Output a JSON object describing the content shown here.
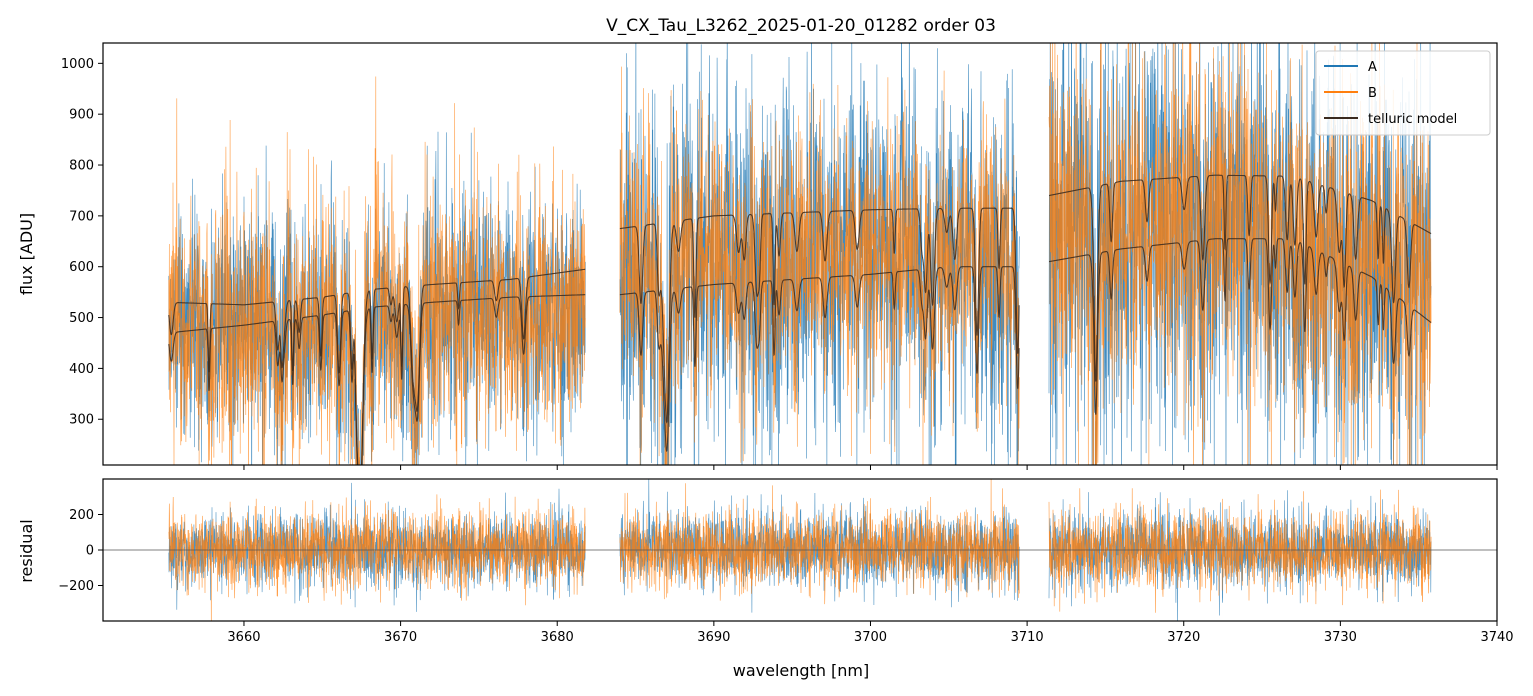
{
  "figure": {
    "title": "V_CX_Tau_L3262_2025-01-20_01282  order 03"
  },
  "colors": {
    "A": "#1f77b4",
    "B": "#ff7f0e",
    "telluric": "#3a2a1f",
    "zero_line": "#555555"
  },
  "chart_data": [
    {
      "type": "line",
      "panel": "flux",
      "ylabel": "flux [ADU]",
      "ylim": [
        210,
        1040
      ],
      "yticks": [
        300,
        400,
        500,
        600,
        700,
        800,
        900,
        1000
      ],
      "xlim": [
        3651,
        3740
      ],
      "grid": false,
      "legend": {
        "placement": "top-right",
        "entries": [
          "A",
          "B",
          "telluric model"
        ]
      },
      "segments_nm": [
        [
          3655.2,
          3681.8
        ],
        [
          3684.0,
          3709.5
        ],
        [
          3711.4,
          3735.8
        ]
      ],
      "series": [
        {
          "name": "A",
          "description": "noisy spectrum",
          "continuum_upper": [
            [
              3655.2,
              530
            ],
            [
              3668,
              555
            ],
            [
              3681.8,
              590
            ],
            [
              3684,
              680
            ],
            [
              3700,
              710
            ],
            [
              3709.5,
              715
            ],
            [
              3711.4,
              740
            ],
            [
              3722,
              780
            ],
            [
              3735.8,
              665
            ]
          ],
          "noise_sigma": [
            [
              3655.2,
              150
            ],
            [
              3681.8,
              150
            ],
            [
              3684,
              250
            ],
            [
              3709.5,
              230
            ],
            [
              3711.4,
              270
            ],
            [
              3735.8,
              270
            ]
          ]
        },
        {
          "name": "B",
          "description": "noisy spectrum",
          "continuum_upper": [
            [
              3655.2,
              530
            ],
            [
              3668,
              555
            ],
            [
              3681.8,
              590
            ],
            [
              3684,
              680
            ],
            [
              3700,
              710
            ],
            [
              3709.5,
              715
            ],
            [
              3711.4,
              740
            ],
            [
              3722,
              780
            ],
            [
              3735.8,
              665
            ]
          ],
          "noise_sigma": [
            [
              3655.2,
              160
            ],
            [
              3681.8,
              160
            ],
            [
              3684,
              180
            ],
            [
              3709.5,
              170
            ],
            [
              3711.4,
              230
            ],
            [
              3735.8,
              230
            ]
          ]
        },
        {
          "name": "telluric model",
          "upper": [
            [
              3655.2,
              530
            ],
            [
              3660,
              525
            ],
            [
              3665,
              540
            ],
            [
              3668,
              555
            ],
            [
              3672,
              565
            ],
            [
              3677,
              575
            ],
            [
              3681.8,
              595
            ],
            [
              3684,
              675
            ],
            [
              3690,
              700
            ],
            [
              3700,
              712
            ],
            [
              3705,
              715
            ],
            [
              3709.5,
              715
            ],
            [
              3711.4,
              740
            ],
            [
              3716,
              768
            ],
            [
              3722,
              780
            ],
            [
              3727,
              778
            ],
            [
              3732,
              730
            ],
            [
              3735.8,
              665
            ]
          ],
          "lower": [
            [
              3655.2,
              470
            ],
            [
              3660,
              485
            ],
            [
              3665,
              505
            ],
            [
              3668,
              520
            ],
            [
              3672,
              530
            ],
            [
              3677,
              540
            ],
            [
              3681.8,
              545
            ],
            [
              3684,
              545
            ],
            [
              3690,
              565
            ],
            [
              3700,
              585
            ],
            [
              3705,
              600
            ],
            [
              3709.5,
              600
            ],
            [
              3711.4,
              610
            ],
            [
              3716,
              635
            ],
            [
              3722,
              655
            ],
            [
              3727,
              655
            ],
            [
              3732,
              580
            ],
            [
              3735.8,
              490
            ]
          ]
        }
      ]
    },
    {
      "type": "line",
      "panel": "residual",
      "ylabel": "residual",
      "xlabel": "wavelength [nm]",
      "ylim": [
        -400,
        400
      ],
      "yticks": [
        -200,
        0,
        200
      ],
      "xlim": [
        3651,
        3740
      ],
      "xticks": [
        3660,
        3670,
        3680,
        3690,
        3700,
        3710,
        3720,
        3730,
        3740
      ],
      "zero_line": 0,
      "series": [
        {
          "name": "A",
          "noise_sigma": 105
        },
        {
          "name": "B",
          "noise_sigma": 110
        }
      ]
    }
  ]
}
